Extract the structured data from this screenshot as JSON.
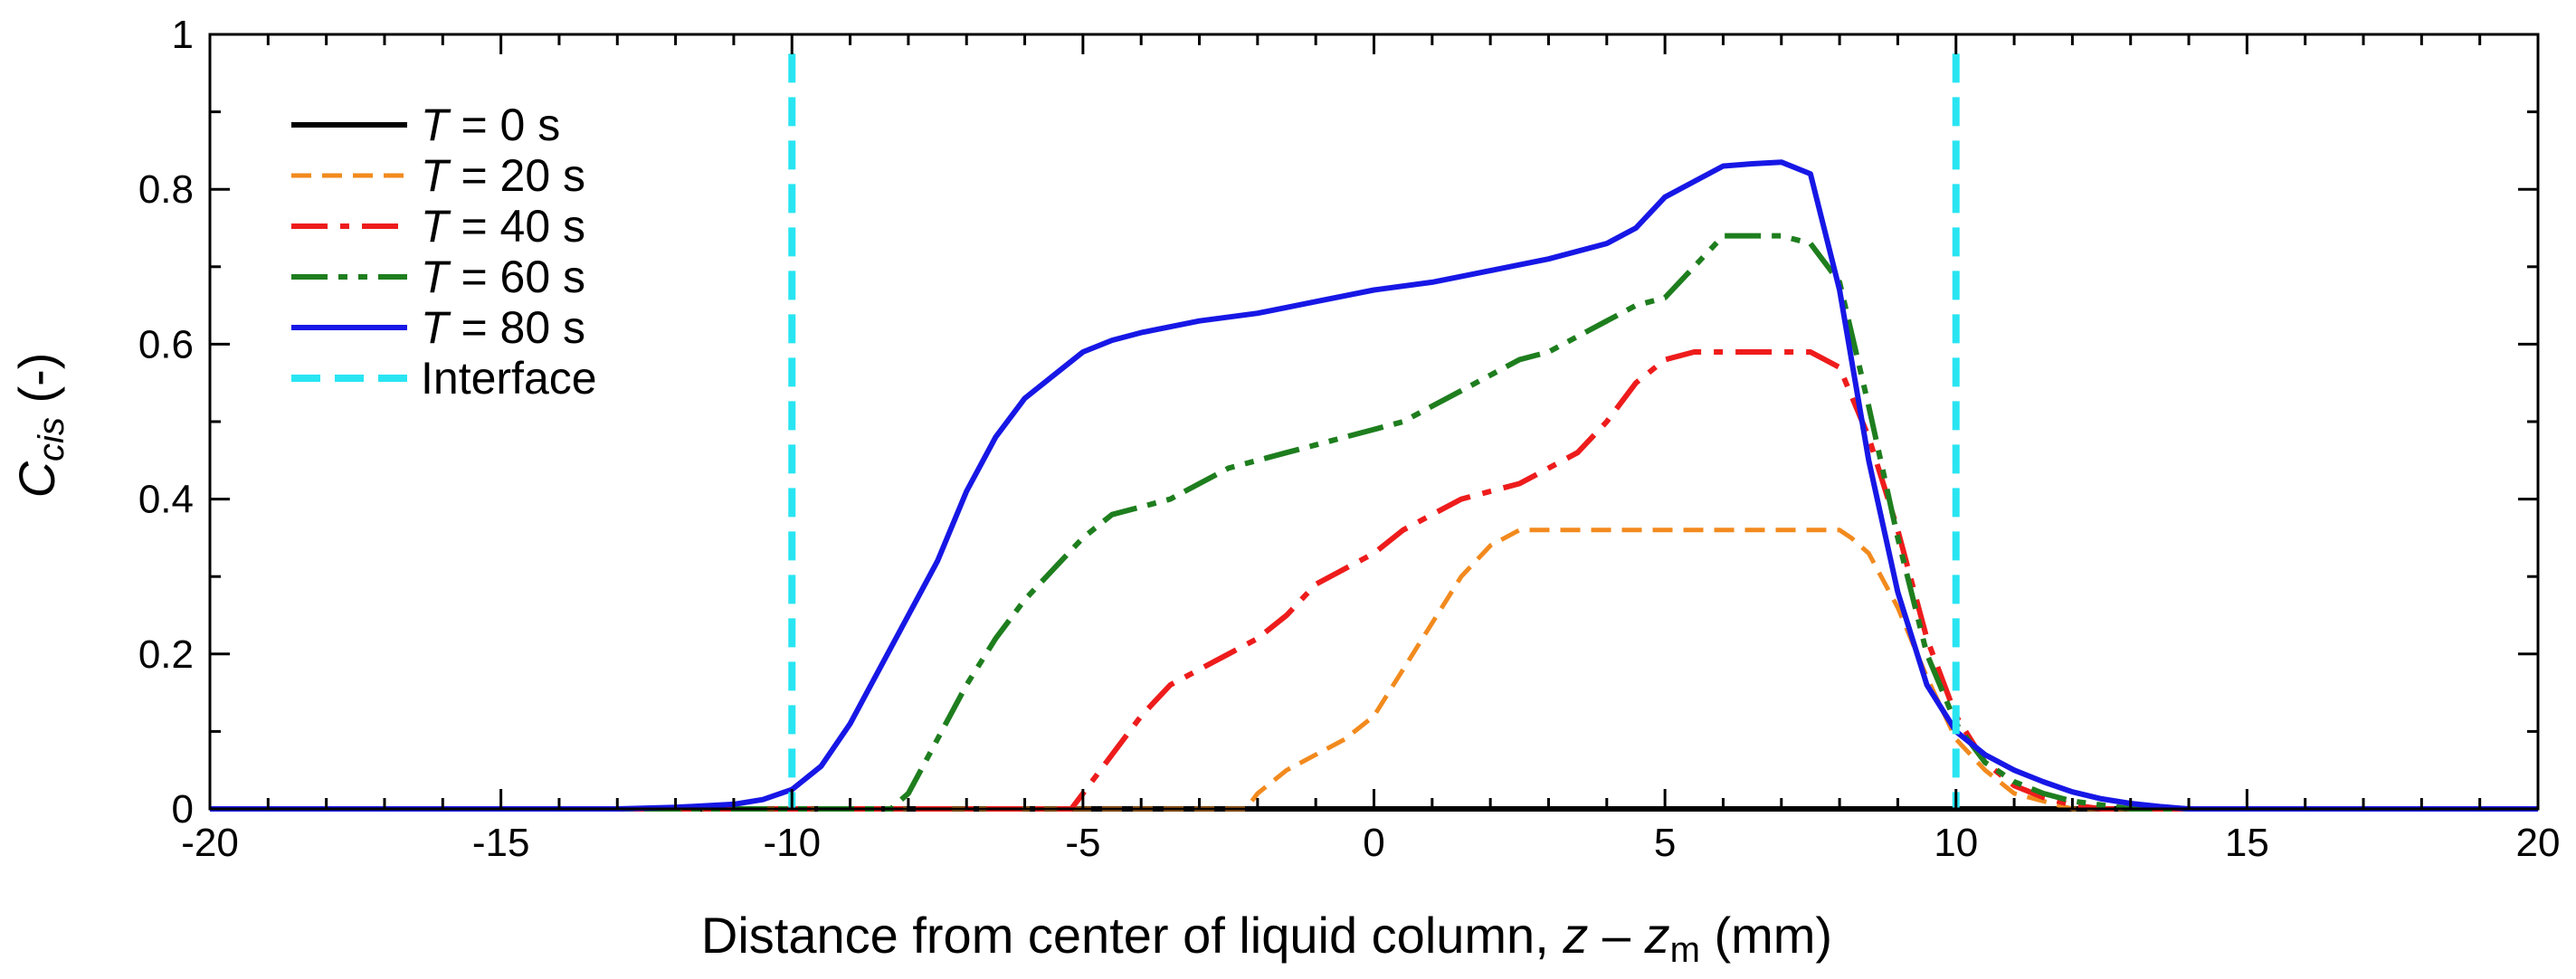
{
  "chart_data": {
    "type": "line",
    "xlabel": {
      "prefix": "Distance from center of liquid column, ",
      "var1": "z",
      "op": " – ",
      "var2": "z",
      "var2_sub": "m",
      "suffix": " (mm)"
    },
    "ylabel": {
      "var": "C",
      "sub": "cis",
      "suffix": " (-)"
    },
    "xlim": [
      -20,
      20
    ],
    "ylim": [
      0,
      1
    ],
    "x_ticks": [
      -20,
      -15,
      -10,
      -5,
      0,
      5,
      10,
      15,
      20
    ],
    "y_ticks": [
      0,
      0.2,
      0.4,
      0.6,
      0.8,
      1
    ],
    "x_tick_labels": [
      "-20",
      "-15",
      "-10",
      "-5",
      "0",
      "5",
      "10",
      "15",
      "20"
    ],
    "y_tick_labels": [
      "0",
      "0.2",
      "0.4",
      "0.6",
      "0.8",
      "1"
    ],
    "grid": false,
    "legend_position": "top-left",
    "series": [
      {
        "name": "T = 0 s",
        "label_var": "T",
        "label_rest": " = 0 s",
        "color": "#000000",
        "style": "solid",
        "x": [
          -20,
          20
        ],
        "y": [
          0,
          0
        ]
      },
      {
        "name": "T = 20 s",
        "label_var": "T",
        "label_rest": " = 20 s",
        "color": "#F28A1E",
        "style": "dash",
        "x": [
          -20,
          -2.2,
          -2.0,
          -1.5,
          -1.0,
          -0.5,
          0,
          0.5,
          1.0,
          1.5,
          2.0,
          2.5,
          3.0,
          4.0,
          5.0,
          6.0,
          7.0,
          8.0,
          8.2,
          8.5,
          9.0,
          9.5,
          10.0,
          10.5,
          11.0,
          11.5,
          12.0,
          20
        ],
        "y": [
          0,
          0,
          0.02,
          0.05,
          0.07,
          0.09,
          0.12,
          0.18,
          0.24,
          0.3,
          0.34,
          0.36,
          0.36,
          0.36,
          0.36,
          0.36,
          0.36,
          0.36,
          0.35,
          0.33,
          0.26,
          0.17,
          0.09,
          0.05,
          0.02,
          0.01,
          0,
          0
        ]
      },
      {
        "name": "T = 40 s",
        "label_var": "T",
        "label_rest": " = 40 s",
        "color": "#EE1C1C",
        "style": "dashdot",
        "x": [
          -20,
          -5.2,
          -5.0,
          -4.5,
          -4.0,
          -3.5,
          -3.0,
          -2.5,
          -2.0,
          -1.5,
          -1.0,
          -0.5,
          0,
          0.5,
          1.0,
          1.5,
          2.0,
          2.5,
          3.0,
          3.5,
          4.0,
          4.5,
          5.0,
          5.5,
          6.0,
          7.0,
          7.5,
          8.0,
          8.5,
          9.0,
          9.5,
          10.0,
          10.5,
          11.0,
          11.5,
          12.0,
          12.5,
          20
        ],
        "y": [
          0,
          0,
          0.02,
          0.07,
          0.12,
          0.16,
          0.18,
          0.2,
          0.22,
          0.25,
          0.29,
          0.31,
          0.33,
          0.36,
          0.38,
          0.4,
          0.41,
          0.42,
          0.44,
          0.46,
          0.5,
          0.55,
          0.58,
          0.59,
          0.59,
          0.59,
          0.59,
          0.57,
          0.48,
          0.36,
          0.22,
          0.12,
          0.06,
          0.03,
          0.015,
          0.005,
          0,
          0
        ]
      },
      {
        "name": "T = 60 s",
        "label_var": "T",
        "label_rest": " = 60 s",
        "color": "#1E7E1E",
        "style": "dashdotdot",
        "x": [
          -20,
          -8.3,
          -8.0,
          -7.5,
          -7.0,
          -6.5,
          -6.0,
          -5.5,
          -5.0,
          -4.5,
          -4.0,
          -3.5,
          -3.0,
          -2.5,
          -2.0,
          -1.5,
          -1.0,
          -0.5,
          0,
          0.5,
          1.0,
          1.5,
          2.0,
          2.5,
          3.0,
          3.5,
          4.0,
          4.5,
          5.0,
          5.5,
          6.0,
          6.5,
          7.0,
          7.5,
          8.0,
          8.5,
          9.0,
          9.5,
          10.0,
          10.5,
          11.0,
          11.5,
          12.0,
          12.5,
          13.0,
          20
        ],
        "y": [
          0,
          0,
          0.02,
          0.09,
          0.16,
          0.22,
          0.27,
          0.31,
          0.35,
          0.38,
          0.39,
          0.4,
          0.42,
          0.44,
          0.45,
          0.46,
          0.47,
          0.48,
          0.49,
          0.5,
          0.52,
          0.54,
          0.56,
          0.58,
          0.59,
          0.61,
          0.63,
          0.65,
          0.66,
          0.7,
          0.74,
          0.74,
          0.74,
          0.73,
          0.68,
          0.52,
          0.35,
          0.2,
          0.11,
          0.06,
          0.035,
          0.02,
          0.01,
          0.005,
          0,
          0
        ]
      },
      {
        "name": "T = 80 s",
        "label_var": "T",
        "label_rest": " = 80 s",
        "color": "#1717E6",
        "style": "solid",
        "x": [
          -20,
          -13,
          -12,
          -11,
          -10.5,
          -10.0,
          -9.5,
          -9.0,
          -8.5,
          -8.0,
          -7.5,
          -7.0,
          -6.5,
          -6.0,
          -5.5,
          -5.0,
          -4.5,
          -4.0,
          -3.0,
          -2.0,
          -1.0,
          0,
          1.0,
          2.0,
          3.0,
          4.0,
          4.5,
          5.0,
          5.5,
          6.0,
          6.5,
          7.0,
          7.5,
          8.0,
          8.5,
          9.0,
          9.5,
          10.0,
          10.5,
          11.0,
          11.5,
          12.0,
          12.5,
          13.0,
          13.5,
          14.0,
          20
        ],
        "y": [
          0,
          0,
          0.002,
          0.006,
          0.012,
          0.025,
          0.055,
          0.11,
          0.18,
          0.25,
          0.32,
          0.41,
          0.48,
          0.53,
          0.56,
          0.59,
          0.605,
          0.615,
          0.63,
          0.64,
          0.655,
          0.67,
          0.68,
          0.695,
          0.71,
          0.73,
          0.75,
          0.79,
          0.81,
          0.83,
          0.833,
          0.835,
          0.82,
          0.67,
          0.45,
          0.28,
          0.16,
          0.1,
          0.07,
          0.05,
          0.035,
          0.022,
          0.013,
          0.007,
          0.003,
          0,
          0
        ]
      },
      {
        "name": "Interface",
        "label_var": "",
        "label_rest": "Interface",
        "color": "#29E5F2",
        "style": "interface",
        "verticals": [
          -10,
          10
        ]
      }
    ]
  }
}
